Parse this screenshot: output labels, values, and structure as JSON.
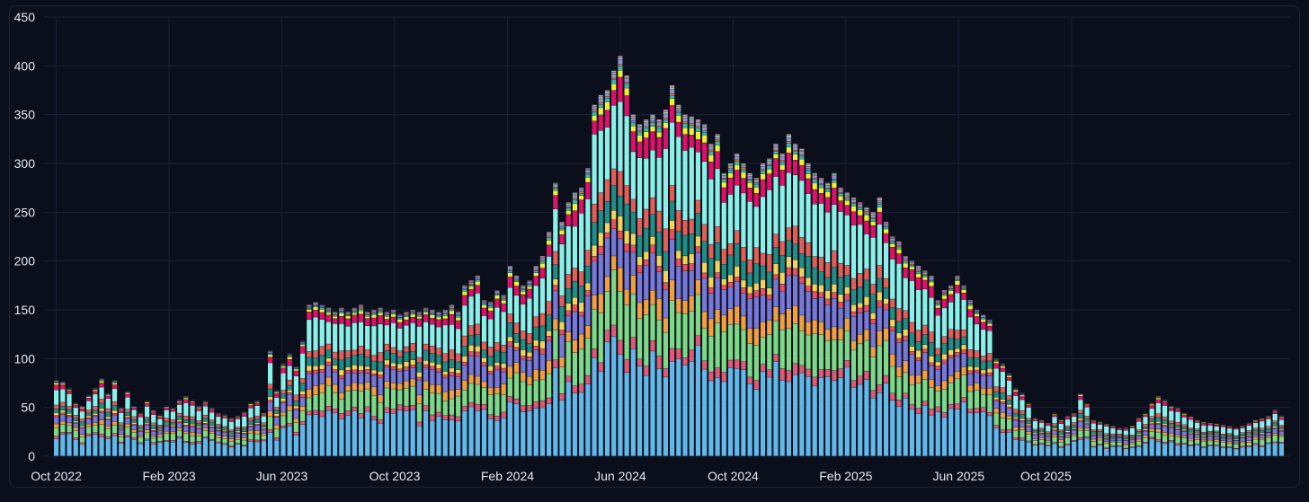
{
  "chart_data": {
    "type": "bar",
    "stacked": true,
    "grid": true,
    "legend": "none",
    "ylim": [
      0,
      450
    ],
    "y_ticks": [
      "0",
      "50",
      "100",
      "150",
      "200",
      "250",
      "300",
      "350",
      "400",
      "450"
    ],
    "x_ticks": [
      "Oct 2022",
      "Feb 2023",
      "Jun 2023",
      "Oct 2023",
      "Feb 2024",
      "Jun 2024",
      "Oct 2024",
      "Feb 2025",
      "Jun 2025",
      "Oct 2025"
    ],
    "x_start": "2022-10",
    "bars_per_month": 4.35,
    "totals": [
      78,
      77,
      70,
      55,
      52,
      63,
      70,
      80,
      65,
      78,
      50,
      67,
      52,
      45,
      57,
      48,
      43,
      52,
      50,
      58,
      62,
      58,
      52,
      57,
      50,
      45,
      43,
      40,
      42,
      46,
      55,
      57,
      45,
      108,
      68,
      95,
      105,
      92,
      118,
      155,
      158,
      155,
      152,
      148,
      152,
      148,
      152,
      155,
      148,
      150,
      152,
      148,
      150,
      145,
      148,
      150,
      148,
      152,
      150,
      148,
      150,
      155,
      148,
      175,
      180,
      185,
      160,
      158,
      170,
      165,
      195,
      185,
      175,
      180,
      195,
      205,
      230,
      280,
      240,
      260,
      270,
      275,
      295,
      360,
      370,
      375,
      395,
      410,
      390,
      350,
      340,
      345,
      350,
      345,
      355,
      380,
      360,
      350,
      348,
      345,
      340,
      320,
      330,
      290,
      300,
      310,
      300,
      290,
      285,
      300,
      305,
      320,
      310,
      330,
      320,
      315,
      300,
      290,
      285,
      280,
      290,
      275,
      270,
      265,
      260,
      255,
      250,
      265,
      240,
      225,
      220,
      205,
      200,
      195,
      190,
      185,
      160,
      170,
      175,
      185,
      175,
      160,
      150,
      145,
      140,
      100,
      95,
      85,
      70,
      65,
      55,
      40,
      38,
      35,
      45,
      38,
      42,
      45,
      65,
      55,
      38,
      36,
      34,
      32,
      30,
      30,
      32,
      40,
      45,
      55,
      62,
      58,
      52,
      50,
      45,
      42,
      38,
      36,
      35,
      34,
      33,
      32,
      30,
      32,
      35,
      38,
      40,
      42,
      48,
      42
    ],
    "segment_colors": [
      "#62b8e8",
      "#e05a78",
      "#7ed987",
      "#f0a040",
      "#7878d8",
      "#e85060",
      "#f2d45a",
      "#1f8f86",
      "#e06058",
      "#8af0e8",
      "#e0106a",
      "#f0f030",
      "#30b8c0",
      "#f07820",
      "#9090e0",
      "#90e090",
      "#e088c0"
    ]
  }
}
